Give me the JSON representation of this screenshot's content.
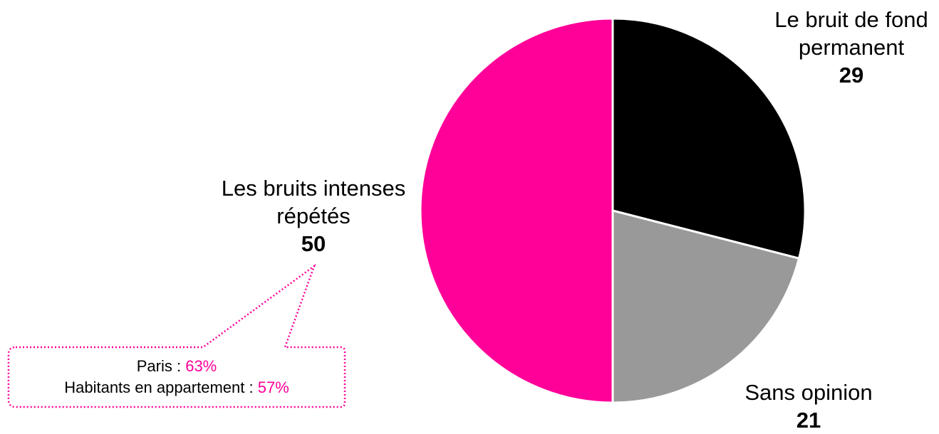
{
  "chart_data": {
    "type": "pie",
    "slices": [
      {
        "label_lines": [
          "Le bruit de fond",
          "permanent"
        ],
        "value": 29,
        "value_text": "29",
        "color": "#000000"
      },
      {
        "label_lines": [
          "Sans opinion"
        ],
        "value": 21,
        "value_text": "21",
        "color": "#999999"
      },
      {
        "label_lines": [
          "Les bruits intenses",
          "répétés"
        ],
        "value": 50,
        "value_text": "50",
        "color": "#ff0099"
      }
    ],
    "start": "12 o'clock",
    "direction": "clockwise"
  },
  "callout": {
    "line1_label": "Paris : ",
    "line1_value": "63%",
    "line2_label": "Habitants en appartement : ",
    "line2_value": "57%",
    "highlight_color": "#ff0099",
    "border_color": "#ff0099"
  }
}
